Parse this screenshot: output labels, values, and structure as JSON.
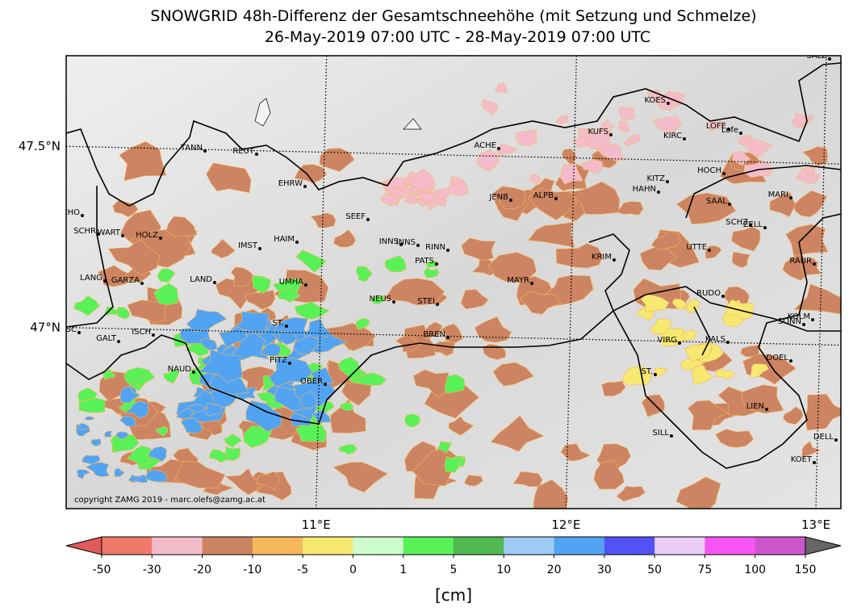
{
  "header": {
    "title": "SNOWGRID 48h-Differenz der Gesamtschneehöhe (mit Setzung und Schmelze)",
    "subtitle": "26-May-2019 07:00 UTC - 28-May-2019 07:00 UTC"
  },
  "map": {
    "lon_range": [
      10,
      13.1
    ],
    "lat_range": [
      46.5,
      47.75
    ],
    "lon_ticks": [
      {
        "value": 11,
        "label": "11°E"
      },
      {
        "value": 12,
        "label": "12°E"
      },
      {
        "value": 13,
        "label": "13°E"
      }
    ],
    "lat_ticks": [
      {
        "value": 47.5,
        "label": "47.5°N"
      },
      {
        "value": 47,
        "label": "47°N"
      }
    ],
    "stations": [
      "SALZ",
      "KOES",
      "LOFE",
      "Lofe",
      "KUFS",
      "KIRC",
      "ACHE",
      "TANN",
      "REUT",
      "HOCH",
      "KITZ",
      "EHRW",
      "HAHN",
      "JENB",
      "ALPB",
      "MARI",
      "SAAL",
      "SCHO",
      "SEEF",
      "SCHZ",
      "ZELL",
      "SCHR",
      "WART",
      "HOLZ",
      "HAIM",
      "INNS",
      "INNS",
      "RINN",
      "IMST",
      "UTTE",
      "KRIM",
      "PATS",
      "RAUR",
      "LANG",
      "GARZA",
      "LAND",
      "UMHA",
      "MAYR",
      "RUDO",
      "NEUS",
      "STEI",
      "KOLM",
      "SONN",
      "ST.",
      "GASC",
      "ISCH",
      "GALT",
      "BREN",
      "VIRG",
      "KALS",
      "PITZ",
      "DOEL",
      "NAUD",
      "ST.",
      "OBER",
      "LIEN",
      "SILL",
      "DELL",
      "KOET"
    ],
    "copyright": "copyright ZAMG 2019 - marc.olefs@zamg.ac.at"
  },
  "colorbar": {
    "ticks": [
      -50,
      -30,
      -20,
      -10,
      -5,
      0,
      1,
      5,
      10,
      20,
      30,
      50,
      75,
      100,
      150
    ],
    "colors": [
      "#f07a6a",
      "#f4bccb",
      "#cc8462",
      "#f6b85a",
      "#f7e872",
      "#ccfccc",
      "#58f258",
      "#52b852",
      "#9ecbf5",
      "#52a4f2",
      "#5252f5",
      "#ebcdf6",
      "#f655f3",
      "#cc55cc"
    ],
    "extend_colors": [
      "#e05a5a",
      "#666666"
    ],
    "unit": "[cm]"
  }
}
